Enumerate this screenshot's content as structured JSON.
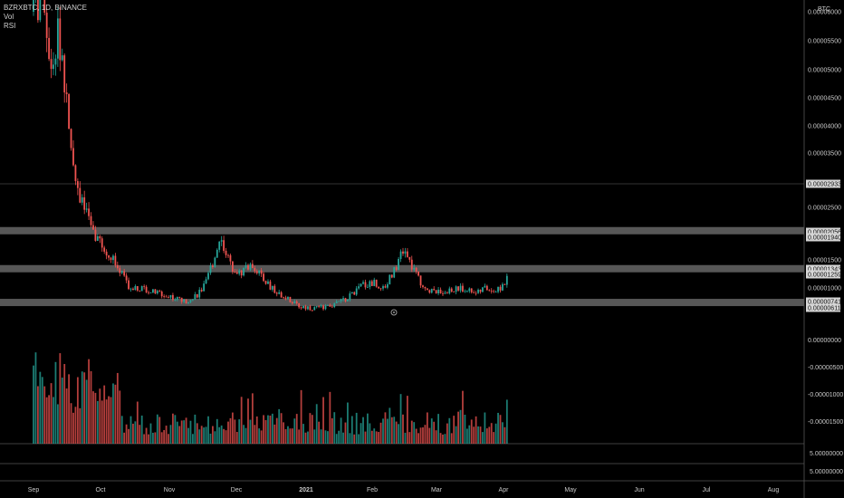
{
  "legend": {
    "symbol_line": "BZRXBTC, 1D, BINANCE",
    "vol_label": "Vol",
    "rsi_label": "RSI"
  },
  "colors": {
    "background": "#000000",
    "up": "#26a69a",
    "down": "#ef5350",
    "band": "#9e9e9e",
    "axis_text": "#c8c8c8",
    "tag_bg": "#d6d6d6"
  },
  "chart_data": {
    "type": "candlestick",
    "currency": "BTC",
    "price_axis": {
      "ticks": [
        {
          "label": "0.00006000",
          "value": 6e-05
        },
        {
          "label": "0.00005500",
          "value": 5.5e-05
        },
        {
          "label": "0.00005000",
          "value": 5e-05
        },
        {
          "label": "0.00004500",
          "value": 4.5e-05
        },
        {
          "label": "0.00004000",
          "value": 4e-05
        },
        {
          "label": "0.00003500",
          "value": 3.5e-05
        },
        {
          "label": "0.00002500",
          "value": 2.5e-05
        },
        {
          "label": "0.00001500",
          "value": 1.5e-05
        },
        {
          "label": "0.00001000",
          "value": 1e-05
        }
      ],
      "vol_ticks": [
        "0.00000000",
        "-0.00000500",
        "-0.00001000",
        "-0.00001500"
      ],
      "rsi_ticks": [
        "5.00000000",
        "5.00000000"
      ]
    },
    "horizontal_levels": [
      {
        "label": "0.00002933",
        "value": 2.933e-05,
        "band": false
      },
      {
        "label": "0.00002056",
        "value": 2.056e-05,
        "band": true
      },
      {
        "label": "0.00001940",
        "value": 1.94e-05,
        "band": false
      },
      {
        "label": "0.00001343",
        "value": 1.343e-05,
        "band": true
      },
      {
        "label": "0.00001259",
        "value": 1.259e-05,
        "band": false
      },
      {
        "label": "0.00000741",
        "value": 7.41e-06,
        "band": true
      },
      {
        "label": "0.00000611",
        "value": 6.11e-06,
        "band": false
      }
    ],
    "time_axis": [
      "Sep",
      "Oct",
      "Nov",
      "Dec",
      "2021",
      "Feb",
      "Mar",
      "Apr",
      "May",
      "Jun",
      "Jul",
      "Aug"
    ],
    "close_path": [
      {
        "date": "2020-09-01",
        "close": 6e-05
      },
      {
        "date": "2020-09-05",
        "close": 6.2e-05
      },
      {
        "date": "2020-09-08",
        "close": 5e-05
      },
      {
        "date": "2020-09-12",
        "close": 5.6e-05
      },
      {
        "date": "2020-09-15",
        "close": 4.8e-05
      },
      {
        "date": "2020-09-18",
        "close": 3.7e-05
      },
      {
        "date": "2020-09-21",
        "close": 2.75e-05
      },
      {
        "date": "2020-09-24",
        "close": 2.55e-05
      },
      {
        "date": "2020-09-27",
        "close": 2.05e-05
      },
      {
        "date": "2020-10-01",
        "close": 1.85e-05
      },
      {
        "date": "2020-10-05",
        "close": 1.6e-05
      },
      {
        "date": "2020-10-09",
        "close": 1.4e-05
      },
      {
        "date": "2020-10-14",
        "close": 1.02e-05
      },
      {
        "date": "2020-10-20",
        "close": 9.8e-06
      },
      {
        "date": "2020-10-26",
        "close": 9.3e-06
      },
      {
        "date": "2020-11-01",
        "close": 8.5e-06
      },
      {
        "date": "2020-11-05",
        "close": 8.1e-06
      },
      {
        "date": "2020-11-09",
        "close": 7.6e-06
      },
      {
        "date": "2020-11-14",
        "close": 8.7e-06
      },
      {
        "date": "2020-11-18",
        "close": 1.1e-05
      },
      {
        "date": "2020-11-21",
        "close": 1.45e-05
      },
      {
        "date": "2020-11-24",
        "close": 1.9e-05
      },
      {
        "date": "2020-11-26",
        "close": 1.75e-05
      },
      {
        "date": "2020-11-29",
        "close": 1.4e-05
      },
      {
        "date": "2020-12-03",
        "close": 1.25e-05
      },
      {
        "date": "2020-12-06",
        "close": 1.35e-05
      },
      {
        "date": "2020-12-09",
        "close": 1.4e-05
      },
      {
        "date": "2020-12-13",
        "close": 1.2e-05
      },
      {
        "date": "2020-12-17",
        "close": 1.02e-05
      },
      {
        "date": "2020-12-21",
        "close": 9e-06
      },
      {
        "date": "2020-12-26",
        "close": 7.8e-06
      },
      {
        "date": "2020-12-31",
        "close": 6.6e-06
      },
      {
        "date": "2021-01-05",
        "close": 6.3e-06
      },
      {
        "date": "2021-01-10",
        "close": 6.6e-06
      },
      {
        "date": "2021-01-15",
        "close": 7e-06
      },
      {
        "date": "2021-01-20",
        "close": 8e-06
      },
      {
        "date": "2021-01-24",
        "close": 9.3e-06
      },
      {
        "date": "2021-01-28",
        "close": 1.05e-05
      },
      {
        "date": "2021-02-02",
        "close": 1.1e-05
      },
      {
        "date": "2021-02-06",
        "close": 1e-05
      },
      {
        "date": "2021-02-10",
        "close": 1.25e-05
      },
      {
        "date": "2021-02-13",
        "close": 1.45e-05
      },
      {
        "date": "2021-02-15",
        "close": 1.7e-05
      },
      {
        "date": "2021-02-17",
        "close": 1.5e-05
      },
      {
        "date": "2021-02-20",
        "close": 1.3e-05
      },
      {
        "date": "2021-02-23",
        "close": 1.1e-05
      },
      {
        "date": "2021-02-27",
        "close": 9.5e-06
      },
      {
        "date": "2021-03-03",
        "close": 9.2e-06
      },
      {
        "date": "2021-03-08",
        "close": 9.6e-06
      },
      {
        "date": "2021-03-13",
        "close": 1e-05
      },
      {
        "date": "2021-03-17",
        "close": 9.6e-06
      },
      {
        "date": "2021-03-21",
        "close": 9.4e-06
      },
      {
        "date": "2021-03-25",
        "close": 1e-05
      },
      {
        "date": "2021-03-29",
        "close": 9.7e-06
      },
      {
        "date": "2021-04-01",
        "close": 1.03e-05
      },
      {
        "date": "2021-04-03",
        "close": 1.18e-05
      }
    ]
  }
}
